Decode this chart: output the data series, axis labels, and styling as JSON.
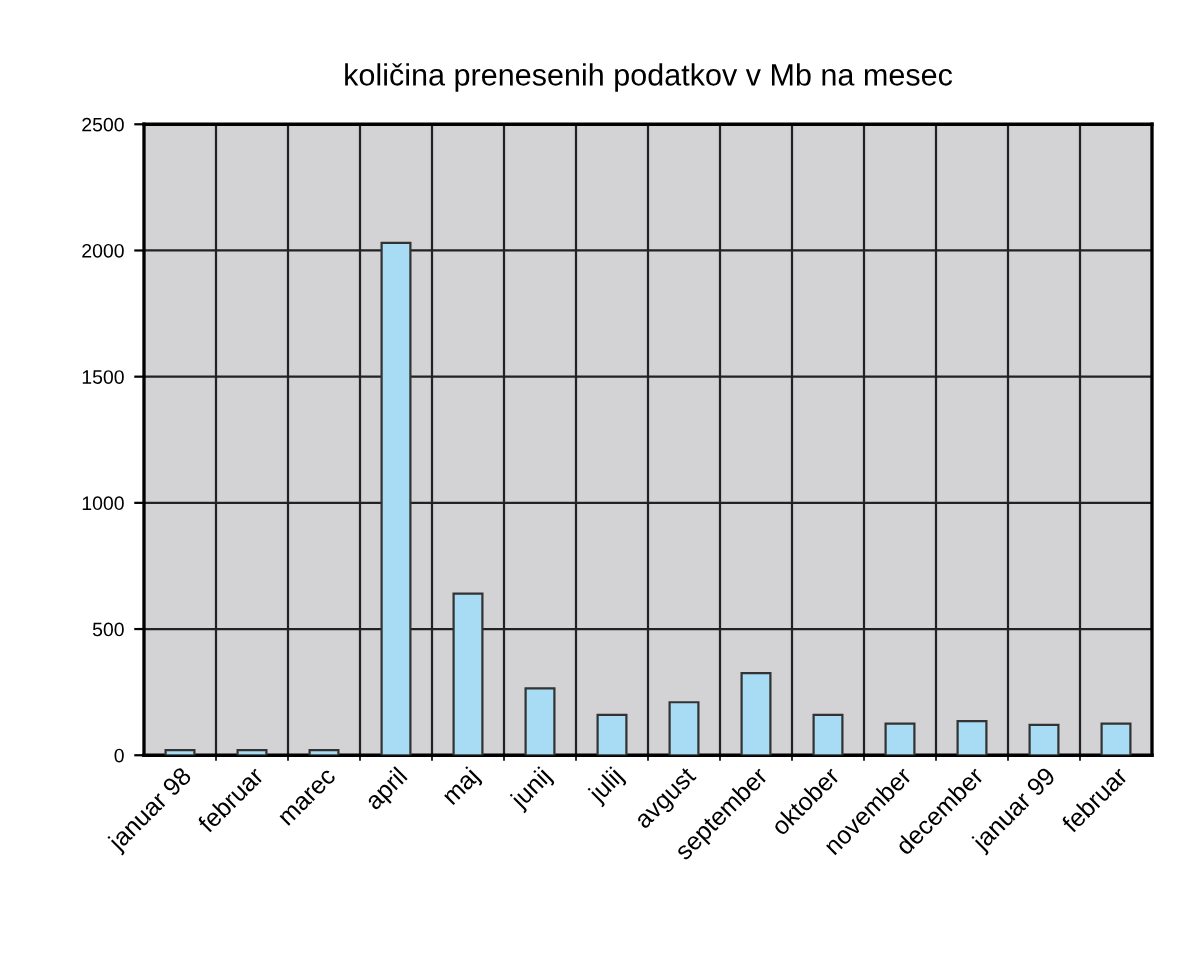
{
  "chart_data": {
    "type": "bar",
    "title": "količina prenesenih podatkov v Mb na mesec",
    "categories": [
      "januar 98",
      "februar",
      "marec",
      "april",
      "maj",
      "junij",
      "julij",
      "avgust",
      "september",
      "oktober",
      "november",
      "december",
      "januar 99",
      "februar"
    ],
    "values": [
      20,
      20,
      20,
      2030,
      640,
      265,
      160,
      210,
      325,
      160,
      125,
      135,
      120,
      125
    ],
    "color": "#a8dcf5",
    "ylim": [
      0,
      2500
    ],
    "yticks": [
      0,
      500,
      1000,
      1500,
      2000,
      2500
    ],
    "grid": true,
    "legend": false
  }
}
